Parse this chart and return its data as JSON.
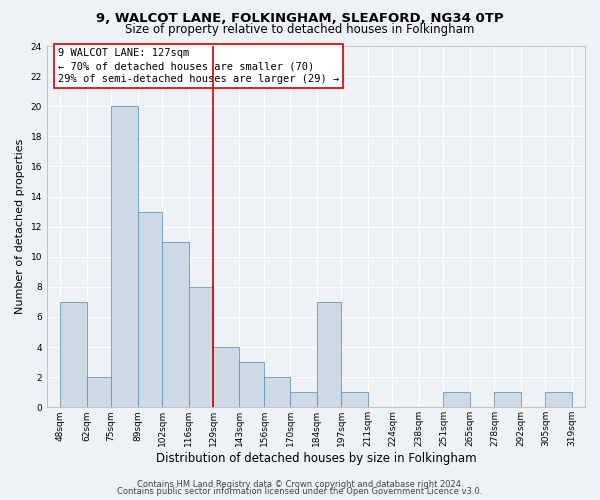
{
  "title": "9, WALCOT LANE, FOLKINGHAM, SLEAFORD, NG34 0TP",
  "subtitle": "Size of property relative to detached houses in Folkingham",
  "xlabel": "Distribution of detached houses by size in Folkingham",
  "ylabel": "Number of detached properties",
  "bar_edges": [
    48,
    62,
    75,
    89,
    102,
    116,
    129,
    143,
    156,
    170,
    184,
    197,
    211,
    224,
    238,
    251,
    265,
    278,
    292,
    305,
    319
  ],
  "bar_heights": [
    7,
    2,
    20,
    13,
    11,
    8,
    4,
    3,
    2,
    1,
    7,
    1,
    0,
    0,
    0,
    1,
    0,
    1,
    0,
    1
  ],
  "bar_labels": [
    "48sqm",
    "62sqm",
    "75sqm",
    "89sqm",
    "102sqm",
    "116sqm",
    "129sqm",
    "143sqm",
    "156sqm",
    "170sqm",
    "184sqm",
    "197sqm",
    "211sqm",
    "224sqm",
    "238sqm",
    "251sqm",
    "265sqm",
    "278sqm",
    "292sqm",
    "305sqm",
    "319sqm"
  ],
  "bar_color": "#cdd9e5",
  "bar_edge_color": "#6699bb",
  "property_line_x": 129,
  "property_line_color": "#cc0000",
  "annotation_title": "9 WALCOT LANE: 127sqm",
  "annotation_line1": "← 70% of detached houses are smaller (70)",
  "annotation_line2": "29% of semi-detached houses are larger (29) →",
  "ylim": [
    0,
    24
  ],
  "yticks": [
    0,
    2,
    4,
    6,
    8,
    10,
    12,
    14,
    16,
    18,
    20,
    22,
    24
  ],
  "footer1": "Contains HM Land Registry data © Crown copyright and database right 2024.",
  "footer2": "Contains public sector information licensed under the Open Government Licence v3.0.",
  "title_fontsize": 9.5,
  "subtitle_fontsize": 8.5,
  "xlabel_fontsize": 8.5,
  "ylabel_fontsize": 8,
  "tick_fontsize": 6.5,
  "footer_fontsize": 6,
  "annotation_title_fontsize": 8,
  "annotation_text_fontsize": 7.5,
  "background_color": "#eef2f7",
  "grid_color": "#ffffff",
  "spine_color": "#bbbbbb"
}
